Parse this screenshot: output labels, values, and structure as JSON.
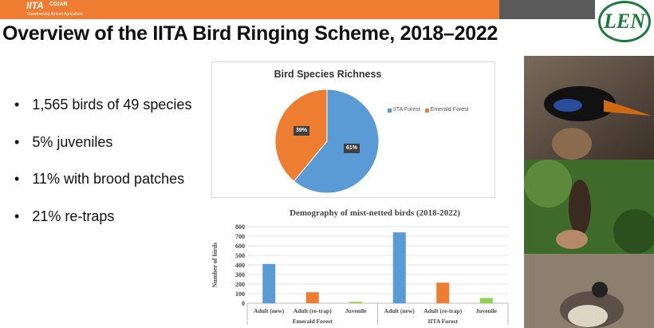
{
  "header": {
    "logo_text": "IITA",
    "logo_tagline": "Transforming African Agriculture",
    "partner": "CGIAR",
    "right_logo": "LEN"
  },
  "title": "Overview of the IITA Bird Ringing Scheme, 2018–2022",
  "bullets": [
    "1,565 birds of 49 species",
    "5% juveniles",
    "11% with brood patches",
    "21% re-traps"
  ],
  "bullet_glyph": "•",
  "chart_data": [
    {
      "type": "pie",
      "title": "Bird Species Richness",
      "labels": [
        "IITA Forest",
        "Emerald Forest"
      ],
      "values": [
        61,
        39
      ],
      "value_labels": [
        "61%",
        "39%"
      ],
      "colors": [
        "#5b9bd5",
        "#ed7d31"
      ],
      "legend": "right"
    },
    {
      "type": "bar",
      "title": "Demography of mist-netted birds (2018-2022)",
      "ylabel": "Number of birds",
      "ylim": [
        0,
        800
      ],
      "yticks": [
        "0",
        "100",
        "200",
        "300",
        "400",
        "500",
        "600",
        "700",
        "800"
      ],
      "groups": [
        "Emerald Forest",
        "IITA Forest"
      ],
      "categories": [
        "Adult (new)",
        "Adult (re-trap)",
        "Juvenile"
      ],
      "values": [
        [
          410,
          115,
          15
        ],
        [
          740,
          215,
          55
        ]
      ],
      "colors": [
        "#5b9bd5",
        "#ed7d31",
        "#92d050"
      ],
      "grid": true
    }
  ]
}
